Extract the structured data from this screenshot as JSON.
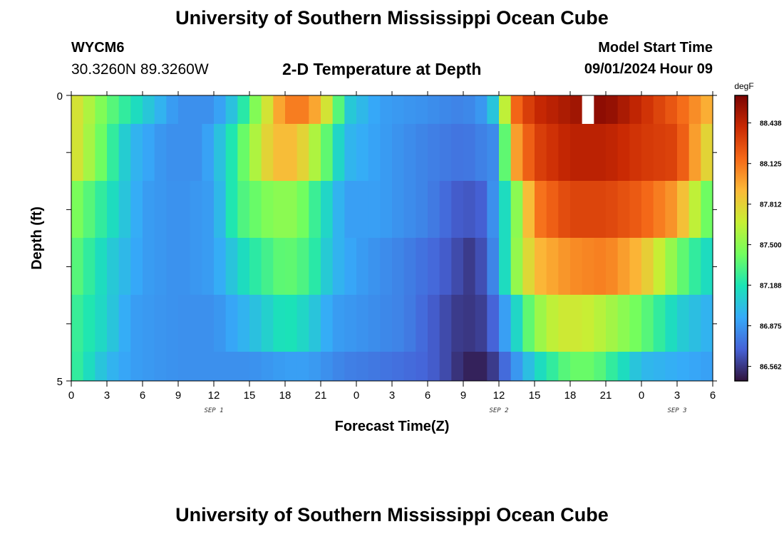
{
  "header": {
    "title": "University of Southern Mississippi Ocean Cube",
    "station": "WYCM6",
    "coords": "30.3260N  89.3260W",
    "subtitle": "2-D Temperature at Depth",
    "model_start_label": "Model Start Time",
    "model_start_value": "09/01/2024 Hour 09"
  },
  "footer": {
    "title": "University of Southern Mississippi Ocean Cube"
  },
  "chart_data": {
    "type": "heatmap",
    "title": "2-D Temperature at Depth",
    "xlabel": "Forecast Time(Z)",
    "ylabel": "Depth (ft)",
    "x_tick_labels": [
      "0",
      "3",
      "6",
      "9",
      "12",
      "15",
      "18",
      "21",
      "0",
      "3",
      "6",
      "9",
      "12",
      "15",
      "18",
      "21",
      "0",
      "3",
      "6"
    ],
    "date_labels": [
      {
        "label": "SEP 1",
        "at_tick": 4
      },
      {
        "label": "SEP 2",
        "at_tick": 12
      },
      {
        "label": "SEP 3",
        "at_tick": 17
      }
    ],
    "y_tick_labels": [
      "0",
      "5"
    ],
    "ylim": [
      0,
      5
    ],
    "x_hours": 54,
    "colorbar": {
      "unit": "degF",
      "ticks": [
        "88.438",
        "88.125",
        "87.812",
        "87.500",
        "87.188",
        "86.875",
        "86.562"
      ],
      "tick_values": [
        88.438,
        88.125,
        87.812,
        87.5,
        87.188,
        86.875,
        86.562
      ],
      "range": [
        86.45,
        88.65
      ],
      "colormap": [
        "#30123b",
        "#4662d7",
        "#36aaf9",
        "#1ae4b6",
        "#72fe5e",
        "#c7ef34",
        "#fbb938",
        "#f56918",
        "#c92903",
        "#7a0403"
      ]
    },
    "missing_cell": {
      "layer": 0,
      "hour": 43
    },
    "depth_layers_ft": [
      {
        "depth": "0-0.5",
        "keypoints": [
          [
            0,
            87.8
          ],
          [
            3,
            87.4
          ],
          [
            6,
            87.1
          ],
          [
            9,
            86.85
          ],
          [
            12,
            86.85
          ],
          [
            14,
            87.1
          ],
          [
            16,
            87.6
          ],
          [
            18,
            88.1
          ],
          [
            20,
            88.1
          ],
          [
            22,
            87.6
          ],
          [
            23,
            87.1
          ],
          [
            26,
            86.9
          ],
          [
            30,
            86.85
          ],
          [
            33,
            86.8
          ],
          [
            35,
            86.9
          ],
          [
            36,
            87.2
          ],
          [
            37,
            88.1
          ],
          [
            39,
            88.4
          ],
          [
            43,
            88.55
          ],
          [
            45,
            88.6
          ],
          [
            48,
            88.4
          ],
          [
            51,
            88.2
          ],
          [
            54,
            87.9
          ]
        ]
      },
      {
        "depth": "0.5-1.5",
        "keypoints": [
          [
            0,
            87.8
          ],
          [
            2,
            87.5
          ],
          [
            5,
            87.0
          ],
          [
            8,
            86.85
          ],
          [
            11,
            86.85
          ],
          [
            13,
            87.1
          ],
          [
            15,
            87.5
          ],
          [
            17,
            87.9
          ],
          [
            19,
            87.9
          ],
          [
            21,
            87.5
          ],
          [
            23,
            87.0
          ],
          [
            26,
            86.9
          ],
          [
            30,
            86.8
          ],
          [
            33,
            86.75
          ],
          [
            36,
            86.85
          ],
          [
            37,
            87.9
          ],
          [
            39,
            88.3
          ],
          [
            42,
            88.45
          ],
          [
            45,
            88.45
          ],
          [
            48,
            88.35
          ],
          [
            51,
            88.3
          ],
          [
            54,
            87.7
          ]
        ]
      },
      {
        "depth": "1.5-2.5",
        "keypoints": [
          [
            0,
            87.5
          ],
          [
            3,
            87.2
          ],
          [
            6,
            86.9
          ],
          [
            9,
            86.85
          ],
          [
            12,
            86.9
          ],
          [
            14,
            87.3
          ],
          [
            17,
            87.5
          ],
          [
            19,
            87.5
          ],
          [
            21,
            87.2
          ],
          [
            23,
            86.9
          ],
          [
            26,
            86.9
          ],
          [
            30,
            86.8
          ],
          [
            33,
            86.65
          ],
          [
            35,
            86.7
          ],
          [
            37,
            87.3
          ],
          [
            39,
            88.1
          ],
          [
            42,
            88.3
          ],
          [
            45,
            88.3
          ],
          [
            48,
            88.2
          ],
          [
            51,
            88.0
          ],
          [
            54,
            87.3
          ]
        ]
      },
      {
        "depth": "2.5-3.5",
        "keypoints": [
          [
            0,
            87.4
          ],
          [
            3,
            87.1
          ],
          [
            6,
            86.9
          ],
          [
            9,
            86.85
          ],
          [
            12,
            86.9
          ],
          [
            15,
            87.2
          ],
          [
            18,
            87.4
          ],
          [
            20,
            87.3
          ],
          [
            22,
            87.0
          ],
          [
            24,
            86.9
          ],
          [
            28,
            86.8
          ],
          [
            31,
            86.7
          ],
          [
            33,
            86.6
          ],
          [
            34,
            86.55
          ],
          [
            36,
            86.9
          ],
          [
            37,
            87.4
          ],
          [
            39,
            87.9
          ],
          [
            42,
            88.05
          ],
          [
            45,
            88.1
          ],
          [
            48,
            87.9
          ],
          [
            50,
            87.6
          ],
          [
            52,
            87.3
          ],
          [
            54,
            87.1
          ]
        ]
      },
      {
        "depth": "3.5-4.5",
        "keypoints": [
          [
            0,
            87.3
          ],
          [
            3,
            87.1
          ],
          [
            5,
            86.9
          ],
          [
            9,
            86.85
          ],
          [
            12,
            86.85
          ],
          [
            15,
            87.0
          ],
          [
            18,
            87.2
          ],
          [
            20,
            87.1
          ],
          [
            22,
            86.9
          ],
          [
            25,
            86.85
          ],
          [
            28,
            86.8
          ],
          [
            31,
            86.65
          ],
          [
            33,
            86.55
          ],
          [
            35,
            86.6
          ],
          [
            37,
            87.0
          ],
          [
            39,
            87.5
          ],
          [
            41,
            87.7
          ],
          [
            43,
            87.7
          ],
          [
            45,
            87.6
          ],
          [
            48,
            87.4
          ],
          [
            51,
            87.1
          ],
          [
            54,
            86.95
          ]
        ]
      },
      {
        "depth": "4.5-5",
        "keypoints": [
          [
            0,
            87.3
          ],
          [
            3,
            87.0
          ],
          [
            5,
            86.9
          ],
          [
            9,
            86.85
          ],
          [
            12,
            86.85
          ],
          [
            15,
            86.85
          ],
          [
            18,
            86.9
          ],
          [
            20,
            86.9
          ],
          [
            23,
            86.8
          ],
          [
            27,
            86.75
          ],
          [
            30,
            86.7
          ],
          [
            32,
            86.6
          ],
          [
            33,
            86.5
          ],
          [
            35,
            86.5
          ],
          [
            37,
            86.8
          ],
          [
            39,
            87.1
          ],
          [
            42,
            87.4
          ],
          [
            44,
            87.4
          ],
          [
            46,
            87.2
          ],
          [
            48,
            87.0
          ],
          [
            51,
            86.95
          ],
          [
            54,
            86.9
          ]
        ]
      }
    ]
  }
}
